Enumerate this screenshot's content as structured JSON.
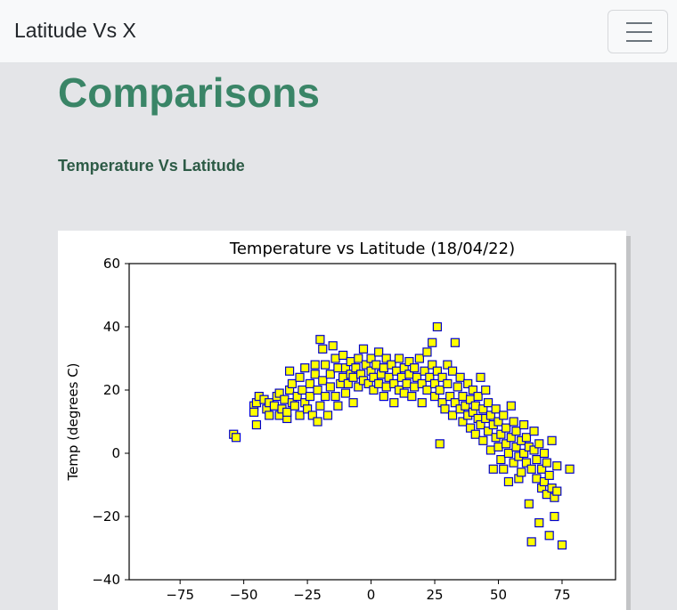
{
  "navbar": {
    "brand": "Latitude Vs X",
    "menu_icon": "hamburger-menu-icon"
  },
  "main": {
    "title": "Comparisons",
    "section_title": "Temperature Vs Latitude"
  },
  "colors": {
    "title": "#3a8567",
    "section_title": "#2d5b46",
    "marker_fill": "#ffff00",
    "marker_edge": "#0000cc"
  },
  "chart_data": {
    "type": "scatter",
    "title": "Temperature vs Latitude (18/04/22)",
    "xlabel": "",
    "ylabel": "Temp (degrees C)",
    "xlim": [
      -95,
      96
    ],
    "ylim": [
      -40,
      60
    ],
    "xticks": [
      -75,
      -50,
      -25,
      0,
      25,
      50,
      75
    ],
    "yticks": [
      -40,
      -20,
      0,
      20,
      40,
      60
    ],
    "grid": false,
    "marker": "square",
    "points": [
      [
        -54,
        6
      ],
      [
        -53,
        5
      ],
      [
        -45,
        9
      ],
      [
        -46,
        15
      ],
      [
        -45,
        16
      ],
      [
        -44,
        18
      ],
      [
        -46,
        13
      ],
      [
        -42,
        17
      ],
      [
        -41,
        14
      ],
      [
        -40,
        12
      ],
      [
        -40,
        16
      ],
      [
        -38,
        15
      ],
      [
        -37,
        18
      ],
      [
        -36,
        12
      ],
      [
        -35,
        14
      ],
      [
        -36,
        19
      ],
      [
        -34,
        17
      ],
      [
        -33,
        11
      ],
      [
        -33,
        13
      ],
      [
        -32,
        20
      ],
      [
        -31,
        16
      ],
      [
        -31,
        22
      ],
      [
        -30,
        15
      ],
      [
        -32,
        26
      ],
      [
        -29,
        18
      ],
      [
        -28,
        12
      ],
      [
        -28,
        24
      ],
      [
        -27,
        20
      ],
      [
        -26,
        16
      ],
      [
        -26,
        27
      ],
      [
        -25,
        14
      ],
      [
        -24,
        22
      ],
      [
        -24,
        18
      ],
      [
        -23,
        12
      ],
      [
        -22,
        25
      ],
      [
        -22,
        28
      ],
      [
        -21,
        10
      ],
      [
        -21,
        20
      ],
      [
        -20,
        15
      ],
      [
        -20,
        36
      ],
      [
        -19,
        33
      ],
      [
        -19,
        23
      ],
      [
        -18,
        18
      ],
      [
        -18,
        28
      ],
      [
        -17,
        12
      ],
      [
        -16,
        25
      ],
      [
        -16,
        21
      ],
      [
        -15,
        34
      ],
      [
        -14,
        18
      ],
      [
        -14,
        30
      ],
      [
        -13,
        15
      ],
      [
        -13,
        27
      ],
      [
        -12,
        22
      ],
      [
        -11,
        24
      ],
      [
        -11,
        31
      ],
      [
        -10,
        19
      ],
      [
        -10,
        27
      ],
      [
        -9,
        22
      ],
      [
        -8,
        29
      ],
      [
        -8,
        25
      ],
      [
        -7,
        16
      ],
      [
        -7,
        24
      ],
      [
        -6,
        27
      ],
      [
        -5,
        30
      ],
      [
        -5,
        21
      ],
      [
        -4,
        25
      ],
      [
        -3,
        33
      ],
      [
        -3,
        23
      ],
      [
        -2,
        28
      ],
      [
        -1,
        22
      ],
      [
        0,
        26
      ],
      [
        0,
        30
      ],
      [
        1,
        20
      ],
      [
        1,
        24
      ],
      [
        2,
        28
      ],
      [
        3,
        32
      ],
      [
        3,
        22
      ],
      [
        4,
        25
      ],
      [
        5,
        18
      ],
      [
        5,
        27
      ],
      [
        6,
        30
      ],
      [
        6,
        21
      ],
      [
        7,
        24
      ],
      [
        8,
        28
      ],
      [
        9,
        16
      ],
      [
        9,
        22
      ],
      [
        10,
        26
      ],
      [
        11,
        30
      ],
      [
        11,
        20
      ],
      [
        12,
        24
      ],
      [
        13,
        27
      ],
      [
        13,
        19
      ],
      [
        14,
        22
      ],
      [
        15,
        29
      ],
      [
        15,
        25
      ],
      [
        16,
        18
      ],
      [
        17,
        21
      ],
      [
        17,
        27
      ],
      [
        18,
        24
      ],
      [
        19,
        30
      ],
      [
        20,
        16
      ],
      [
        20,
        22
      ],
      [
        21,
        26
      ],
      [
        22,
        32
      ],
      [
        22,
        20
      ],
      [
        23,
        24
      ],
      [
        24,
        35
      ],
      [
        24,
        28
      ],
      [
        25,
        18
      ],
      [
        25,
        22
      ],
      [
        26,
        40
      ],
      [
        26,
        26
      ],
      [
        27,
        20
      ],
      [
        27,
        3
      ],
      [
        28,
        16
      ],
      [
        28,
        24
      ],
      [
        29,
        14
      ],
      [
        30,
        22
      ],
      [
        30,
        28
      ],
      [
        31,
        18
      ],
      [
        32,
        12
      ],
      [
        32,
        26
      ],
      [
        33,
        35
      ],
      [
        33,
        16
      ],
      [
        34,
        21
      ],
      [
        35,
        14
      ],
      [
        35,
        24
      ],
      [
        36,
        10
      ],
      [
        36,
        18
      ],
      [
        37,
        15
      ],
      [
        38,
        12
      ],
      [
        38,
        22
      ],
      [
        39,
        8
      ],
      [
        39,
        17
      ],
      [
        40,
        13
      ],
      [
        40,
        20
      ],
      [
        41,
        6
      ],
      [
        41,
        15
      ],
      [
        42,
        11
      ],
      [
        42,
        18
      ],
      [
        43,
        9
      ],
      [
        43,
        24
      ],
      [
        44,
        14
      ],
      [
        44,
        4
      ],
      [
        45,
        20
      ],
      [
        45,
        11
      ],
      [
        46,
        7
      ],
      [
        46,
        16
      ],
      [
        47,
        1
      ],
      [
        47,
        12
      ],
      [
        48,
        -5
      ],
      [
        48,
        9
      ],
      [
        49,
        5
      ],
      [
        49,
        14
      ],
      [
        50,
        2
      ],
      [
        50,
        10
      ],
      [
        51,
        -2
      ],
      [
        51,
        6
      ],
      [
        52,
        12
      ],
      [
        52,
        -5
      ],
      [
        53,
        3
      ],
      [
        53,
        8
      ],
      [
        54,
        -9
      ],
      [
        54,
        0
      ],
      [
        55,
        5
      ],
      [
        55,
        15
      ],
      [
        56,
        -3
      ],
      [
        56,
        10
      ],
      [
        57,
        2
      ],
      [
        57,
        7
      ],
      [
        58,
        -8
      ],
      [
        58,
        -1
      ],
      [
        59,
        4
      ],
      [
        59,
        -6
      ],
      [
        60,
        0
      ],
      [
        60,
        9
      ],
      [
        61,
        -3
      ],
      [
        61,
        5
      ],
      [
        62,
        -16
      ],
      [
        62,
        2
      ],
      [
        63,
        -28
      ],
      [
        63,
        -5
      ],
      [
        64,
        1
      ],
      [
        64,
        7
      ],
      [
        65,
        -8
      ],
      [
        65,
        -2
      ],
      [
        66,
        -22
      ],
      [
        66,
        3
      ],
      [
        67,
        -11
      ],
      [
        67,
        -5
      ],
      [
        68,
        -9
      ],
      [
        68,
        0
      ],
      [
        69,
        -13
      ],
      [
        69,
        -3
      ],
      [
        70,
        -26
      ],
      [
        70,
        -7
      ],
      [
        71,
        -11
      ],
      [
        71,
        4
      ],
      [
        72,
        -20
      ],
      [
        72,
        -14
      ],
      [
        73,
        -12
      ],
      [
        73,
        -4
      ],
      [
        75,
        -29
      ],
      [
        78,
        -5
      ]
    ]
  }
}
